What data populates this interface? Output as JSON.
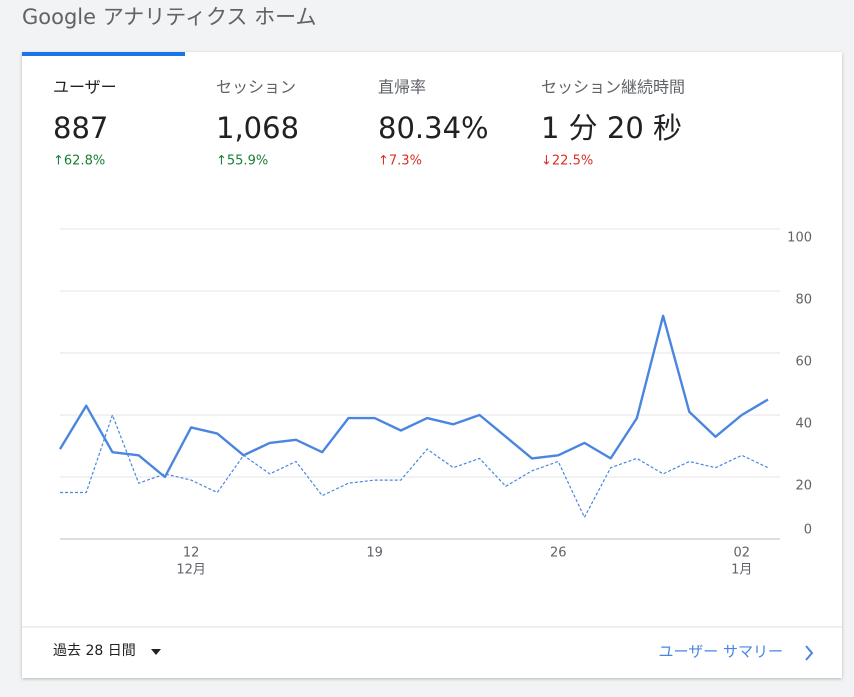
{
  "header": {
    "title": "Google アナリティクス ホーム"
  },
  "metrics": [
    {
      "label": "ユーザー",
      "value": "887",
      "change": "↑62.8%",
      "color": "#188038"
    },
    {
      "label": "セッション",
      "value": "1,068",
      "change": "↑55.9%",
      "color": "#188038"
    },
    {
      "label": "直帰率",
      "value": "80.34%",
      "change": "↑7.3%",
      "color": "#d93025"
    },
    {
      "label": "セッション継続時間",
      "value": "1 分 20 秒",
      "change": "↓22.5%",
      "color": "#d93025"
    }
  ],
  "chart_data": {
    "type": "line",
    "categories": [
      null,
      null,
      null,
      null,
      null,
      "12",
      null,
      null,
      null,
      null,
      null,
      null,
      "19",
      null,
      null,
      null,
      null,
      null,
      null,
      "26",
      null,
      null,
      null,
      null,
      null,
      null,
      "02",
      null
    ],
    "category_sublabels": [
      null,
      null,
      null,
      null,
      null,
      "12月",
      null,
      null,
      null,
      null,
      null,
      null,
      null,
      null,
      null,
      null,
      null,
      null,
      null,
      null,
      null,
      null,
      null,
      null,
      null,
      null,
      "1月",
      null
    ],
    "series": [
      {
        "color": "#4a86e0",
        "dashed": false,
        "values": [
          29,
          43,
          28,
          27,
          20,
          36,
          34,
          27,
          31,
          32,
          28,
          39,
          39,
          35,
          39,
          37,
          40,
          33,
          26,
          27,
          31,
          26,
          39,
          72,
          41,
          33,
          40,
          45
        ]
      },
      {
        "color": "#4a86e0",
        "dashed": true,
        "values": [
          15,
          15,
          40,
          18,
          21,
          19,
          15,
          27,
          21,
          25,
          14,
          18,
          19,
          19,
          29,
          23,
          26,
          17,
          22,
          25,
          7,
          23,
          26,
          21,
          25,
          23,
          27,
          23
        ]
      }
    ],
    "ylim": [
      0,
      100
    ],
    "yticks": [
      0,
      20,
      40,
      60,
      80,
      100
    ],
    "grid": true
  },
  "footer": {
    "range": "過去 28 日間",
    "link": "ユーザー サマリー"
  }
}
